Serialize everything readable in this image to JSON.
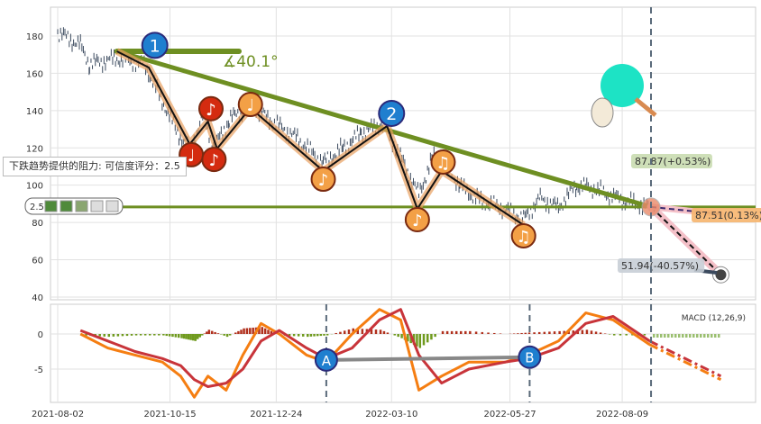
{
  "chart_data": [
    {
      "type": "line",
      "panel": "price",
      "y_ticks": [
        40,
        60,
        80,
        100,
        120,
        140,
        160,
        180
      ],
      "ylim": [
        38,
        195
      ],
      "grid": true,
      "price_series": [
        [
          "2021-08-02",
          182
        ],
        [
          "2021-08-17",
          175
        ],
        [
          "2021-08-23",
          165
        ],
        [
          "2021-09-10",
          168
        ],
        [
          "2021-09-28",
          165
        ],
        [
          "2021-10-07",
          150
        ],
        [
          "2021-10-19",
          130
        ],
        [
          "2021-10-28",
          118
        ],
        [
          "2021-11-06",
          138
        ],
        [
          "2021-11-13",
          120
        ],
        [
          "2021-11-23",
          135
        ],
        [
          "2021-12-07",
          143
        ],
        [
          "2021-12-20",
          135
        ],
        [
          "2022-01-07",
          125
        ],
        [
          "2022-01-24",
          112
        ],
        [
          "2022-02-06",
          120
        ],
        [
          "2022-02-18",
          128
        ],
        [
          "2022-03-04",
          133
        ],
        [
          "2022-03-13",
          120
        ],
        [
          "2022-03-28",
          95
        ],
        [
          "2022-04-06",
          115
        ],
        [
          "2022-04-13",
          112
        ],
        [
          "2022-04-24",
          100
        ],
        [
          "2022-05-06",
          92
        ],
        [
          "2022-05-21",
          88
        ],
        [
          "2022-06-05",
          82
        ],
        [
          "2022-06-16",
          93
        ],
        [
          "2022-06-28",
          88
        ],
        [
          "2022-07-10",
          100
        ],
        [
          "2022-07-22",
          98
        ],
        [
          "2022-08-09",
          92
        ],
        [
          "2022-08-27",
          88
        ]
      ],
      "trend_line": {
        "start": [
          "2021-09-10",
          171.8
        ],
        "end": [
          "2022-08-28",
          88.3
        ],
        "angle_label": "∡40.1°"
      },
      "support_level": 88.3,
      "zigzag": [
        [
          "2021-09-10",
          171.8
        ],
        [
          "2021-10-01",
          163.1
        ],
        [
          "2021-10-28",
          122
        ],
        [
          "2021-11-09",
          134.1
        ],
        [
          "2021-11-15",
          119.6
        ],
        [
          "2021-12-07",
          141.4
        ],
        [
          "2022-01-24",
          107.6
        ],
        [
          "2022-03-07",
          131.7
        ],
        [
          "2022-03-27",
          87.3
        ],
        [
          "2022-04-12",
          107.6
        ],
        [
          "2022-06-05",
          78.6
        ]
      ],
      "markers": [
        {
          "label": "1",
          "kind": "blue",
          "date": "2021-10-05",
          "price": 175
        },
        {
          "label": "2",
          "kind": "blue",
          "date": "2022-03-10",
          "price": 138.5
        },
        {
          "label": "♩",
          "kind": "red",
          "date": "2021-10-29",
          "price": 116.3
        },
        {
          "label": "♪",
          "kind": "red",
          "date": "2021-11-11",
          "price": 141
        },
        {
          "label": "♪",
          "kind": "red",
          "date": "2021-11-13",
          "price": 113.8
        },
        {
          "label": "♩",
          "kind": "orange",
          "date": "2021-12-07",
          "price": 143.3
        },
        {
          "label": "♪",
          "kind": "orange",
          "date": "2022-01-24",
          "price": 103.2
        },
        {
          "label": "♫",
          "kind": "orange",
          "date": "2022-04-13",
          "price": 112.4
        },
        {
          "label": "♪",
          "kind": "orange",
          "date": "2022-03-27",
          "price": 81.5
        },
        {
          "label": "♫",
          "kind": "orange",
          "date": "2022-06-05",
          "price": 72.8
        }
      ],
      "current": {
        "date": "2022-08-28",
        "price": 88.3
      },
      "forecasts": [
        {
          "label": "87.87(+0.53%)",
          "kind": "green"
        },
        {
          "label": "87.51(0.13%)",
          "kind": "orange",
          "date": "2022-10-13",
          "price": 84.5
        },
        {
          "label": "51.94(-40.57%)",
          "kind": "gray",
          "date": "2022-10-13",
          "price": 51.94
        }
      ],
      "tooltip": "下跌趋势提供的阻力: 可信度评分：2.5",
      "rating": {
        "value": "2.5",
        "score": 2.5,
        "max": 5
      }
    },
    {
      "type": "line",
      "panel": "macd",
      "title": "MACD (12,26,9)",
      "y_ticks": [
        0,
        -5
      ],
      "dates": [
        "2021-08-17",
        "2021-09-04",
        "2021-09-22",
        "2021-10-10",
        "2021-10-22",
        "2021-10-31",
        "2021-11-09",
        "2021-11-21",
        "2021-12-02",
        "2021-12-14",
        "2021-12-26",
        "2022-01-13",
        "2022-01-26",
        "2022-02-12",
        "2022-03-02",
        "2022-03-16",
        "2022-03-28",
        "2022-04-12",
        "2022-04-30",
        "2022-05-24",
        "2022-06-08",
        "2022-06-28",
        "2022-07-16",
        "2022-08-03",
        "2022-08-27"
      ],
      "macd": [
        0,
        -2,
        -3,
        -4,
        -6,
        -9,
        -6,
        -8,
        -3,
        1.5,
        0,
        -3,
        -4,
        0,
        3.5,
        2,
        -8,
        -6,
        -4,
        -4,
        -3,
        -1,
        3,
        2,
        -1.5
      ],
      "signal": [
        0.5,
        -1,
        -2.5,
        -3.5,
        -4.5,
        -6.5,
        -7.5,
        -7,
        -5,
        -1,
        0.5,
        -2,
        -3.5,
        -2,
        2,
        3.5,
        -3,
        -7,
        -5,
        -4,
        -3.5,
        -2,
        1.5,
        2.5,
        -1
      ],
      "forecast": {
        "date": "2022-10-13",
        "macd": -6.5,
        "signal": -6
      },
      "markers": [
        {
          "label": "A",
          "date": "2022-01-26",
          "value": -3.7
        },
        {
          "label": "B",
          "date": "2022-06-09",
          "value": -3.3
        }
      ],
      "vlines": [
        "2022-01-26",
        "2022-06-09",
        "2022-08-28"
      ]
    }
  ],
  "x_ticks": [
    "2021-08-02",
    "2021-10-15",
    "2021-12-24",
    "2022-03-10",
    "2022-05-27",
    "2022-08-09"
  ],
  "colors": {
    "green": "#6e8f22",
    "orange": "#f3a046",
    "red": "#d42b10",
    "blue": "#1f7fcf",
    "price": "#3b4a5e",
    "macd": "#f57e12",
    "signal": "#c8343a",
    "hist_pos": "#b0301d",
    "hist_neg": "#6f9a1e"
  }
}
